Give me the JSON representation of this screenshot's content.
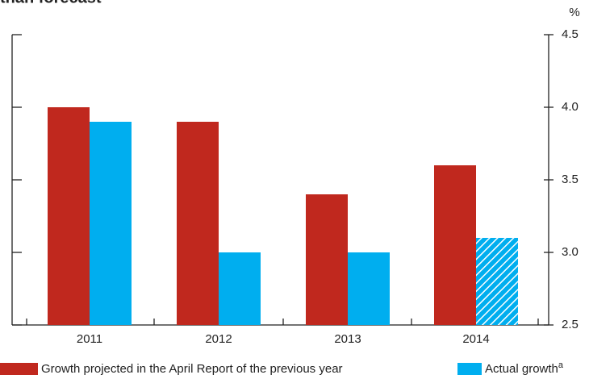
{
  "chart_data": {
    "type": "bar",
    "title": "than forecast",
    "y_unit": "%",
    "categories": [
      "2011",
      "2012",
      "2013",
      "2014"
    ],
    "series": [
      {
        "name": "Growth projected in the April Report of the previous year",
        "color": "#c0281e",
        "values": [
          4.0,
          3.9,
          3.4,
          3.6
        ]
      },
      {
        "name": "Actual growth",
        "name_superscript": "a",
        "color": "#00aeef",
        "values": [
          3.9,
          3.0,
          3.0,
          3.1
        ],
        "hatched": [
          false,
          false,
          false,
          true
        ]
      }
    ],
    "ylim": [
      2.5,
      4.5
    ],
    "yticks": [
      2.5,
      {
        "value": 3.0,
        "label": "3.0"
      },
      3.5,
      {
        "value": 4.0,
        "label": "4.0"
      },
      4.5
    ],
    "y_axis_side": "right",
    "grid": false
  }
}
